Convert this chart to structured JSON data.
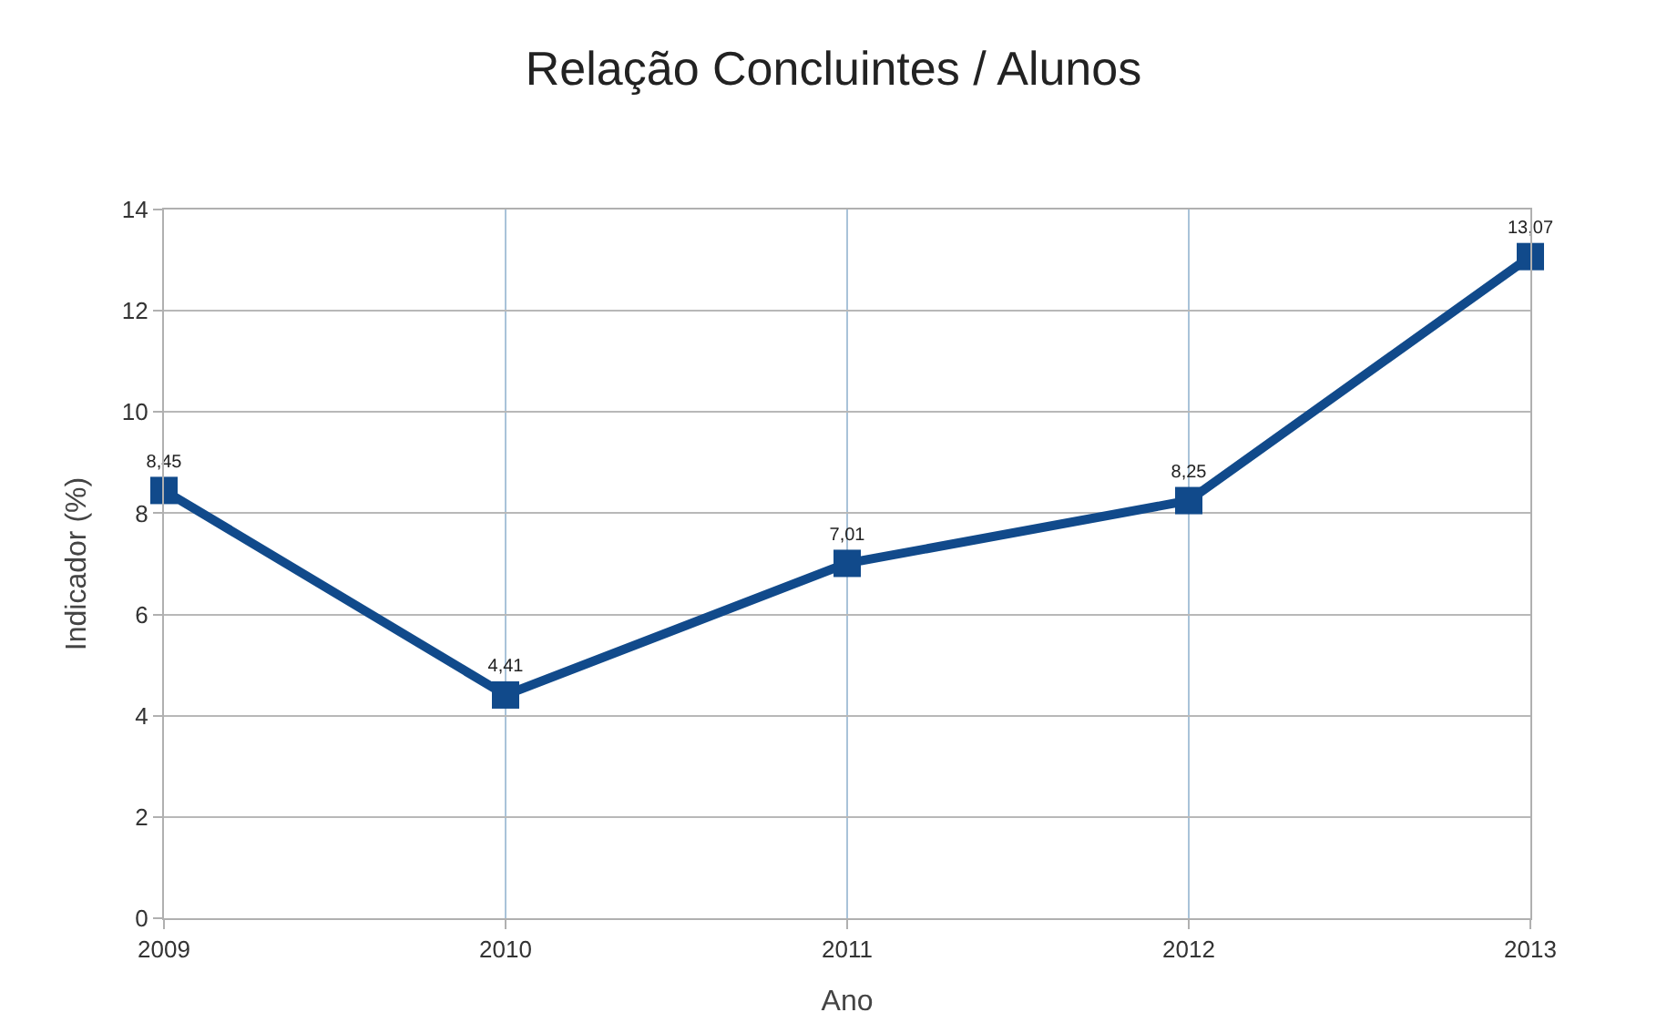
{
  "chart_data": {
    "type": "line",
    "title": "Relação Concluintes / Alunos",
    "xlabel": "Ano",
    "ylabel": "Indicador (%)",
    "x": [
      2009,
      2010,
      2011,
      2012,
      2013
    ],
    "series": [
      {
        "color": "#114a8b",
        "values": [
          8.45,
          4.41,
          7.01,
          8.25,
          13.07
        ],
        "value_labels": [
          "8,45",
          "4,41",
          "7,01",
          "8,25",
          "13,07"
        ]
      }
    ],
    "xlim": [
      2009,
      2013
    ],
    "xticks": [
      2009,
      2010,
      2011,
      2012,
      2013
    ],
    "ylim": [
      0,
      14
    ],
    "yticks": [
      0,
      2,
      4,
      6,
      8,
      10,
      12,
      14
    ],
    "grid": true,
    "marker": "square",
    "line_style": "solid"
  }
}
